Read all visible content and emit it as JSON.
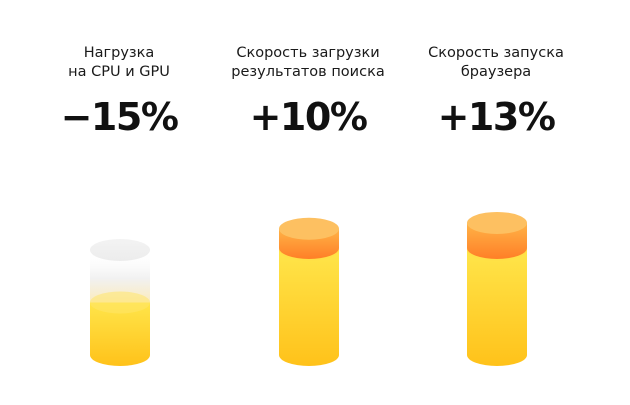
{
  "chart_data": {
    "type": "bar",
    "categories": [
      [
        "Нагрузка",
        "на CPU и GPU"
      ],
      [
        "Скорость загрузки",
        "результатов поиска"
      ],
      [
        "Скорость запуска",
        "браузера"
      ]
    ],
    "values": [
      -15,
      10,
      13
    ],
    "value_labels": [
      "−15%",
      "+10%",
      "+13%"
    ],
    "unit": "%",
    "colors": {
      "bar_light": "#ffe54a",
      "bar_dark": "#ffc21a",
      "cap_top": "#fdc061",
      "cap_side": "#ff8a2a",
      "ghost": "#f1f1f1"
    }
  }
}
